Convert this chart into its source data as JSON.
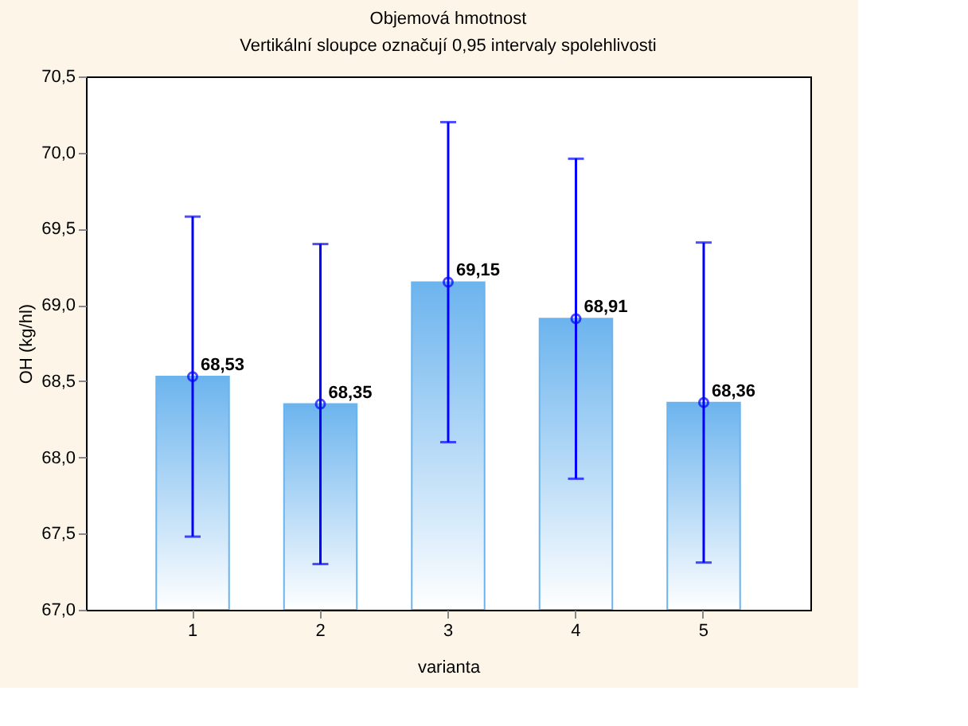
{
  "chart_data": {
    "type": "bar",
    "title": "Objemová hmotnost",
    "subtitle": "Vertikální sloupce označují 0,95 intervaly spolehlivosti",
    "xlabel": "varianta",
    "ylabel": "OH (kg/hl)",
    "categories": [
      "1",
      "2",
      "3",
      "4",
      "5"
    ],
    "series": [
      {
        "color": "#6cb4ee",
        "values": [
          68.53,
          68.35,
          69.15,
          68.91,
          68.36
        ]
      },
      {
        "type": "scatter",
        "color": "#0000ff",
        "marker": "circle",
        "x": [
          "1",
          "2",
          "3",
          "4",
          "5"
        ],
        "values": [
          68.53,
          68.35,
          69.15,
          68.91,
          68.36
        ],
        "errors": [
          1.05,
          1.05,
          1.05,
          1.05,
          1.05
        ],
        "value_labels": [
          "68,53",
          "68,35",
          "69,15",
          "68,91",
          "68,36"
        ]
      }
    ],
    "ylim": [
      67.0,
      70.5
    ],
    "yticks": [
      {
        "value": 67.0,
        "label": "67,0"
      },
      {
        "value": 67.5,
        "label": "67,5"
      },
      {
        "value": 68.0,
        "label": "68,0"
      },
      {
        "value": 68.5,
        "label": "68,5"
      },
      {
        "value": 69.0,
        "label": "69,0"
      },
      {
        "value": 69.5,
        "label": "69,5"
      },
      {
        "value": 70.0,
        "label": "70,0"
      },
      {
        "value": 70.5,
        "label": "70,5"
      }
    ],
    "grid": false
  }
}
